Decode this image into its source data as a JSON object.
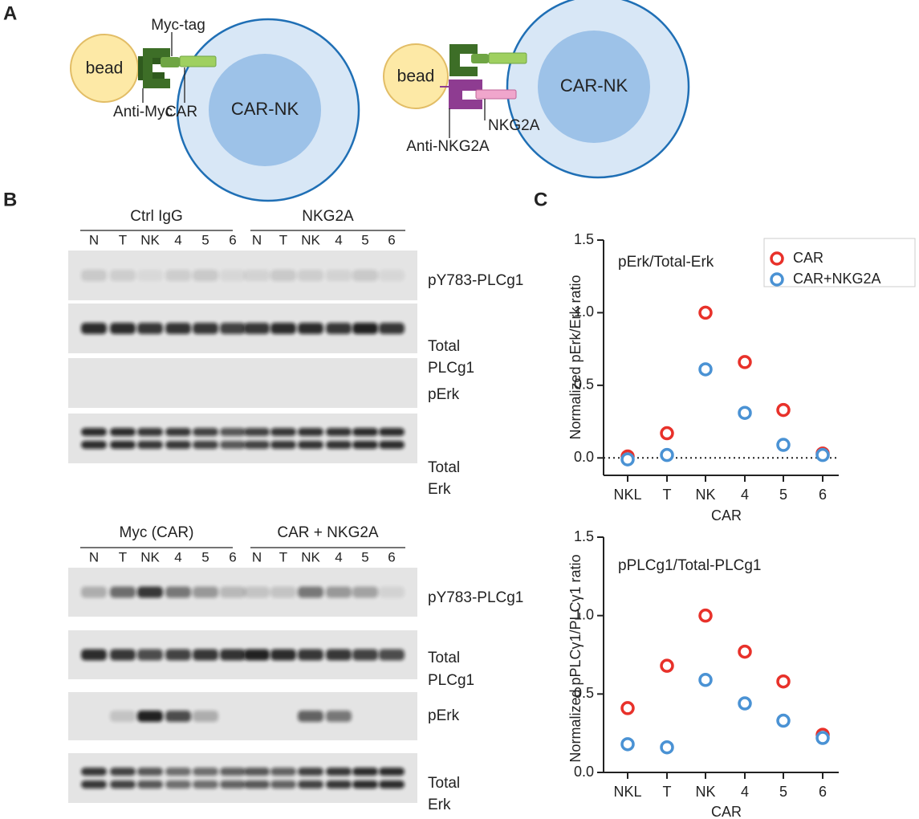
{
  "panel_labels": [
    "A",
    "B",
    "C"
  ],
  "panel_a": {
    "left": {
      "bead": "bead",
      "myc_tag": "Myc-tag",
      "car": "CAR",
      "anti_myc": "Anti-Myc",
      "cell": "CAR-NK"
    },
    "right": {
      "bead": "bead",
      "cell": "CAR-NK",
      "nkg2a": "NKG2A",
      "anti_nkg2a": "Anti-NKG2A"
    }
  },
  "panel_b": {
    "blocks": [
      {
        "groups": [
          "Ctrl IgG",
          "NKG2A"
        ],
        "lanes": [
          "N",
          "T",
          "NK",
          "4",
          "5",
          "6",
          "N",
          "T",
          "NK",
          "4",
          "5",
          "6"
        ],
        "blots": [
          [
            "pY783-PLCg1"
          ],
          [
            "Total",
            "PLCg1"
          ],
          [
            "pErk"
          ],
          [
            "Total",
            "Erk"
          ]
        ]
      },
      {
        "groups": [
          "Myc (CAR)",
          "CAR + NKG2A"
        ],
        "lanes": [
          "N",
          "T",
          "NK",
          "4",
          "5",
          "6",
          "N",
          "T",
          "NK",
          "4",
          "5",
          "6"
        ],
        "blots": [
          [
            "pY783-PLCg1"
          ],
          [
            "Total",
            "PLCg1"
          ],
          [
            "pErk"
          ],
          [
            "Total",
            "Erk"
          ]
        ]
      }
    ]
  },
  "chart_data": [
    {
      "type": "scatter",
      "annotation": "pErk/Total-Erk",
      "ylabel": "Normalized pErk/Erk ratio",
      "xlabel": "CAR",
      "categories": [
        "NKL",
        "T",
        "NK",
        "4",
        "5",
        "6"
      ],
      "series": [
        {
          "name": "CAR",
          "color": "#e8312a",
          "values": [
            0.01,
            0.17,
            1.0,
            0.66,
            0.33,
            0.03
          ]
        },
        {
          "name": "CAR+NKG2A",
          "color": "#4a92d4",
          "values": [
            -0.01,
            0.02,
            0.61,
            0.31,
            0.09,
            0.02
          ]
        }
      ],
      "ylim": [
        -0.12,
        1.5
      ],
      "yticks": [
        {
          "value": 0,
          "label": "0.0"
        },
        0.5,
        {
          "value": 1,
          "label": "1.0"
        },
        1.5
      ],
      "zero_line": true,
      "legend": "upper right"
    },
    {
      "type": "scatter",
      "annotation": "pPLCg1/Total-PLCg1",
      "ylabel": "Normalized pPLCγ1/PLCγ1 ratio",
      "xlabel": "CAR",
      "categories": [
        "NKL",
        "T",
        "NK",
        "4",
        "5",
        "6"
      ],
      "series": [
        {
          "name": "CAR",
          "color": "#e8312a",
          "values": [
            0.41,
            0.68,
            1.0,
            0.77,
            0.58,
            0.24
          ]
        },
        {
          "name": "CAR+NKG2A",
          "color": "#4a92d4",
          "values": [
            0.18,
            0.16,
            0.59,
            0.44,
            0.33,
            0.22
          ]
        }
      ],
      "ylim": [
        0,
        1.5
      ],
      "yticks": [
        {
          "value": 0,
          "label": "0.0"
        },
        0.5,
        {
          "value": 1,
          "label": "1.0"
        },
        1.5
      ]
    }
  ]
}
